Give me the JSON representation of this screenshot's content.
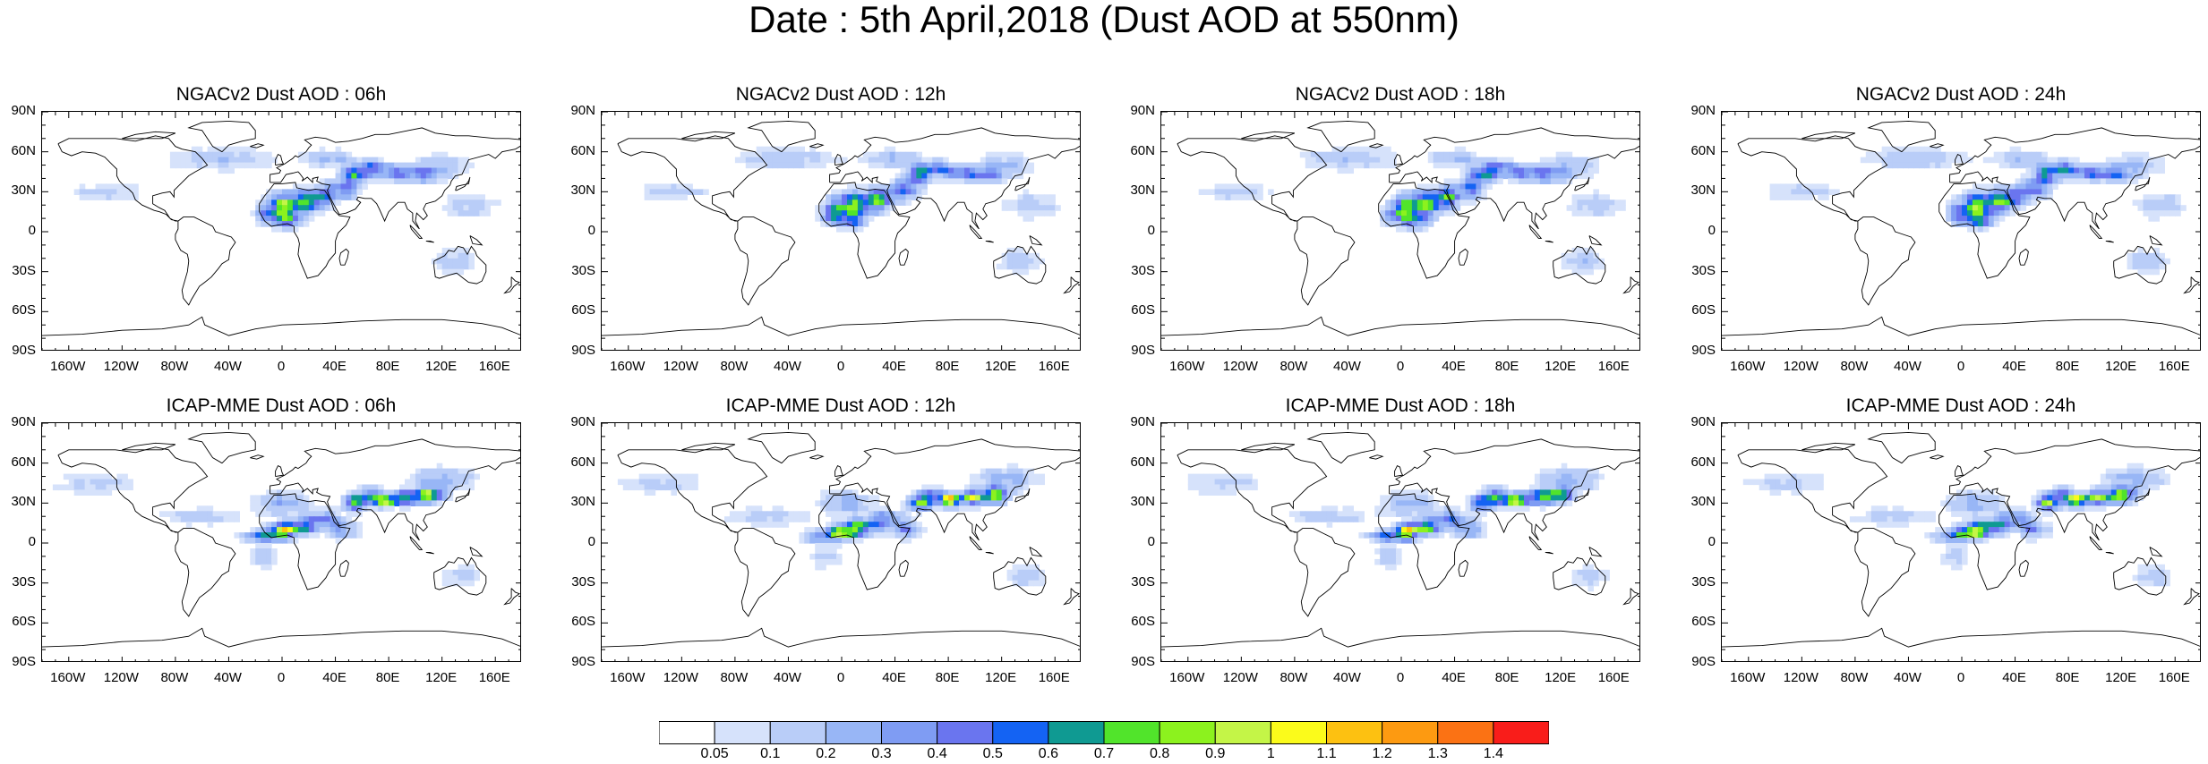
{
  "title": "Date : 5th April,2018 (Dust AOD at 550nm)",
  "panels": [
    {
      "title": "NGACv2 Dust AOD : 06h",
      "model": "ngac",
      "step": 0
    },
    {
      "title": "NGACv2 Dust AOD : 12h",
      "model": "ngac",
      "step": 1
    },
    {
      "title": "NGACv2 Dust AOD : 18h",
      "model": "ngac",
      "step": 2
    },
    {
      "title": "NGACv2 Dust AOD : 24h",
      "model": "ngac",
      "step": 3
    },
    {
      "title": "ICAP-MME Dust AOD : 06h",
      "model": "icap",
      "step": 0
    },
    {
      "title": "ICAP-MME Dust AOD : 12h",
      "model": "icap",
      "step": 1
    },
    {
      "title": "ICAP-MME Dust AOD : 18h",
      "model": "icap",
      "step": 2
    },
    {
      "title": "ICAP-MME Dust AOD : 24h",
      "model": "icap",
      "step": 3
    }
  ],
  "lat_ticks": [
    "90N",
    "60N",
    "30N",
    "0",
    "30S",
    "60S",
    "90S"
  ],
  "lon_ticks": [
    "160W",
    "120W",
    "80W",
    "40W",
    "0",
    "40E",
    "80E",
    "120E",
    "160E"
  ],
  "colorbar": {
    "labels": [
      "0.05",
      "0.1",
      "0.2",
      "0.3",
      "0.4",
      "0.5",
      "0.6",
      "0.7",
      "0.8",
      "0.9",
      "1",
      "1.1",
      "1.2",
      "1.3",
      "1.4"
    ],
    "colors": [
      "#ffffff",
      "#d6e2fb",
      "#b9cdf8",
      "#98b6f6",
      "#7f9cf3",
      "#6a75ef",
      "#1463f3",
      "#0f9a92",
      "#51e42b",
      "#8cf21e",
      "#c4f547",
      "#fbfb1b",
      "#fdc111",
      "#fd9a11",
      "#fb7214",
      "#f91d1a"
    ]
  }
}
